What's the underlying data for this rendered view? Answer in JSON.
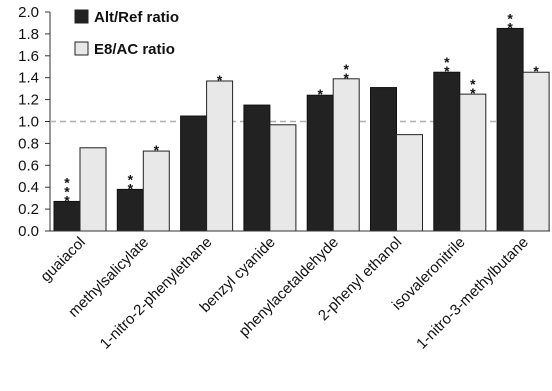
{
  "chart_data": {
    "type": "bar",
    "title": "",
    "xlabel": "",
    "ylabel": "",
    "ylim": [
      0,
      2.0
    ],
    "yticks": [
      "0.0",
      "0.2",
      "0.4",
      "0.6",
      "0.8",
      "1.0",
      "1.2",
      "1.4",
      "1.6",
      "1.8",
      "2.0"
    ],
    "reference_line": {
      "y": 1.0,
      "style": "dashed",
      "color": "#b0b0b0"
    },
    "categories": [
      "guaiacol",
      "methylsalicylate",
      "1-nitro-2-phenylethane",
      "benzyl cyanide",
      "phenylacetaldehyde",
      "2-phenyl ethanol",
      "isovaleronitrile",
      "1-nitro-3-methylbutane"
    ],
    "series": [
      {
        "name": "Alt/Ref ratio",
        "color": "#222222",
        "values": [
          0.27,
          0.38,
          1.05,
          1.15,
          1.24,
          1.31,
          1.45,
          1.85
        ],
        "significance": [
          "***",
          "**",
          "",
          "",
          "*",
          "",
          "**",
          "**"
        ]
      },
      {
        "name": "E8/AC ratio",
        "color": "#e8e8e8",
        "values": [
          0.76,
          0.73,
          1.37,
          0.97,
          1.39,
          0.88,
          1.25,
          1.45
        ],
        "significance": [
          "",
          "*",
          "*",
          "",
          "**",
          "",
          "**",
          "*"
        ]
      }
    ],
    "legend": {
      "placement": "top-left"
    },
    "grid": false
  }
}
